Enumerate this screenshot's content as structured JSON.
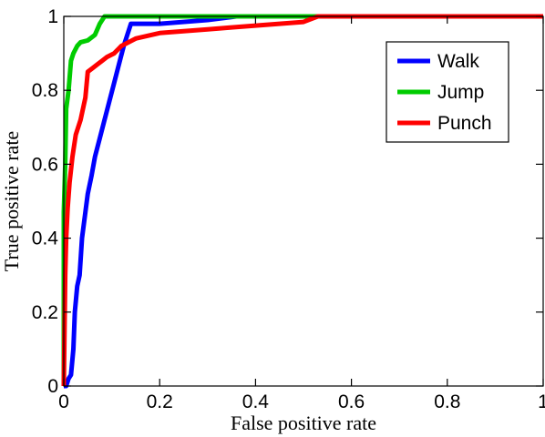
{
  "chart_data": {
    "type": "line",
    "title": "",
    "xlabel": "False positive rate",
    "ylabel": "True positive rate",
    "xlim": [
      0,
      1
    ],
    "ylim": [
      0,
      1
    ],
    "x_ticks": [
      "0",
      "0.2",
      "0.4",
      "0.6",
      "0.8",
      "1"
    ],
    "y_ticks": [
      "0",
      "0.2",
      "0.4",
      "0.6",
      "0.8",
      "1"
    ],
    "grid": false,
    "legend_position": "top-right",
    "series": [
      {
        "name": "Walk",
        "color": "#0000ff",
        "points": [
          [
            0,
            0
          ],
          [
            0.005,
            0.0
          ],
          [
            0.01,
            0.02
          ],
          [
            0.015,
            0.03
          ],
          [
            0.02,
            0.1
          ],
          [
            0.023,
            0.2
          ],
          [
            0.028,
            0.27
          ],
          [
            0.033,
            0.3
          ],
          [
            0.038,
            0.4
          ],
          [
            0.045,
            0.47
          ],
          [
            0.05,
            0.52
          ],
          [
            0.058,
            0.57
          ],
          [
            0.065,
            0.62
          ],
          [
            0.075,
            0.67
          ],
          [
            0.085,
            0.72
          ],
          [
            0.095,
            0.77
          ],
          [
            0.105,
            0.82
          ],
          [
            0.115,
            0.87
          ],
          [
            0.125,
            0.92
          ],
          [
            0.14,
            0.98
          ],
          [
            0.2,
            0.98
          ],
          [
            0.3,
            0.99
          ],
          [
            0.36,
            1.0
          ],
          [
            1.0,
            1.0
          ]
        ]
      },
      {
        "name": "Jump",
        "color": "#00cc00",
        "points": [
          [
            0,
            0.0
          ],
          [
            0,
            0.47
          ],
          [
            0.003,
            0.6
          ],
          [
            0.005,
            0.75
          ],
          [
            0.01,
            0.8
          ],
          [
            0.015,
            0.88
          ],
          [
            0.02,
            0.9
          ],
          [
            0.028,
            0.92
          ],
          [
            0.035,
            0.93
          ],
          [
            0.05,
            0.935
          ],
          [
            0.065,
            0.95
          ],
          [
            0.075,
            0.98
          ],
          [
            0.085,
            1.0
          ],
          [
            1.0,
            1.0
          ]
        ]
      },
      {
        "name": "Punch",
        "color": "#ff0000",
        "points": [
          [
            0,
            0.0
          ],
          [
            0.003,
            0.3
          ],
          [
            0.005,
            0.4
          ],
          [
            0.008,
            0.48
          ],
          [
            0.012,
            0.55
          ],
          [
            0.018,
            0.62
          ],
          [
            0.025,
            0.68
          ],
          [
            0.035,
            0.72
          ],
          [
            0.045,
            0.78
          ],
          [
            0.05,
            0.85
          ],
          [
            0.06,
            0.86
          ],
          [
            0.07,
            0.87
          ],
          [
            0.08,
            0.88
          ],
          [
            0.09,
            0.89
          ],
          [
            0.105,
            0.9
          ],
          [
            0.12,
            0.92
          ],
          [
            0.15,
            0.94
          ],
          [
            0.2,
            0.955
          ],
          [
            0.25,
            0.96
          ],
          [
            0.3,
            0.965
          ],
          [
            0.35,
            0.97
          ],
          [
            0.4,
            0.975
          ],
          [
            0.45,
            0.98
          ],
          [
            0.5,
            0.985
          ],
          [
            0.53,
            1.0
          ],
          [
            1.0,
            1.0
          ]
        ]
      }
    ]
  }
}
